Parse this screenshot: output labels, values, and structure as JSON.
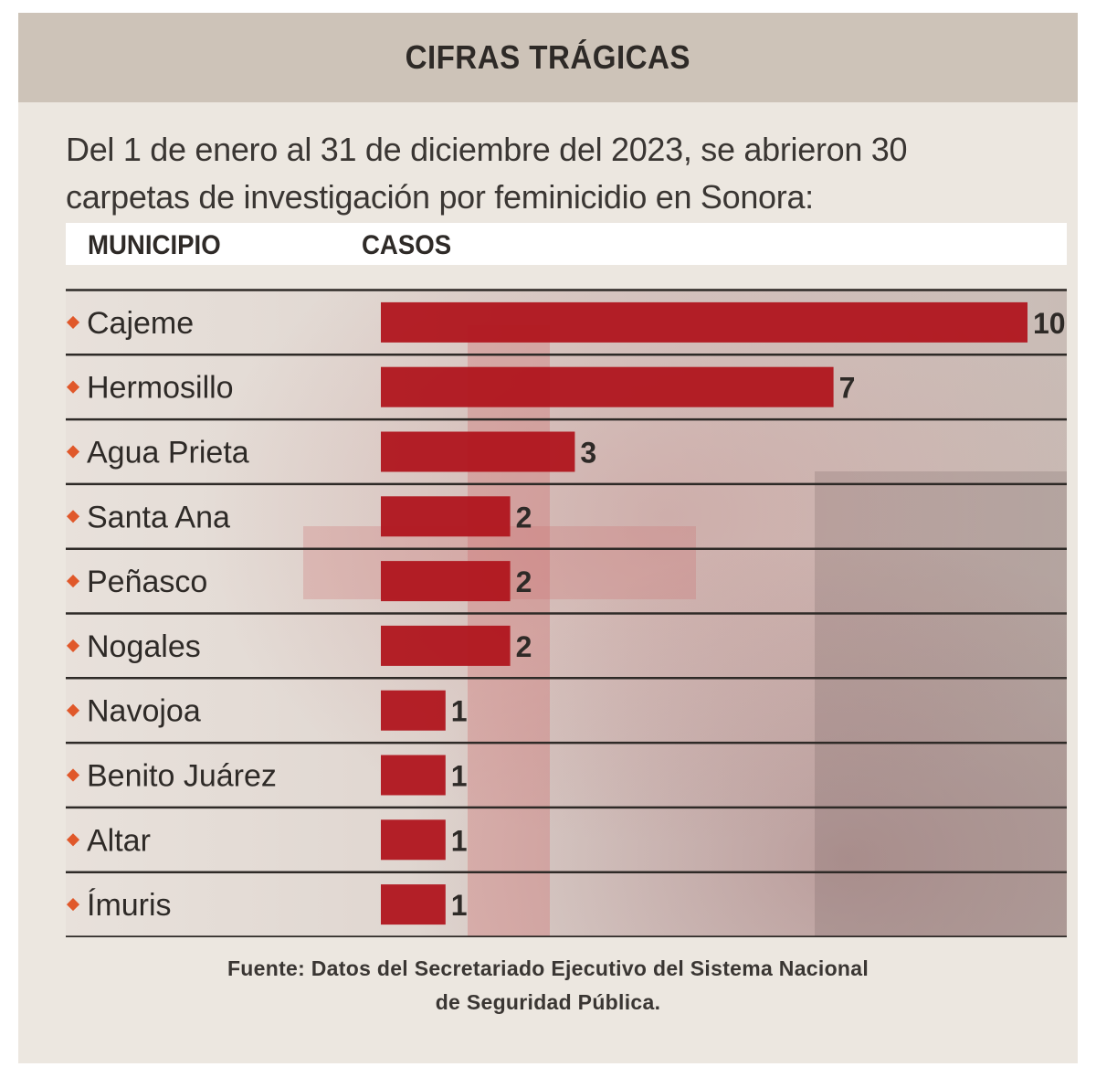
{
  "title": "CIFRAS TRÁGICAS",
  "intro": {
    "line1": "Del 1 de enero al 31 de diciembre del 2023, se abrieron 30",
    "line2": "carpetas de investigación por feminicidio en Sonora:"
  },
  "columns": {
    "municipio": "MUNICIPIO",
    "casos": "CASOS"
  },
  "colors": {
    "bar": "#b0151d",
    "bullet": "#e0582a",
    "header_bg": "#cdc3b8",
    "card_bg": "#ece7e0"
  },
  "chart_data": {
    "type": "bar",
    "orientation": "horizontal",
    "categories": [
      "Cajeme",
      "Hermosillo",
      "Agua Prieta",
      "Santa Ana",
      "Peñasco",
      "Nogales",
      "Navojoa",
      "Benito Juárez",
      "Altar",
      "Ímuris"
    ],
    "values": [
      10,
      7,
      3,
      2,
      2,
      2,
      1,
      1,
      1,
      1
    ],
    "value_labels": [
      "10",
      "7",
      "3",
      "2",
      "2",
      "2",
      "1",
      "1",
      "1",
      "1"
    ],
    "xlim": [
      0,
      10
    ]
  },
  "source": {
    "line1": "Fuente: Datos del Secretariado Ejecutivo del Sistema Nacional",
    "line2": "de Seguridad Pública."
  }
}
